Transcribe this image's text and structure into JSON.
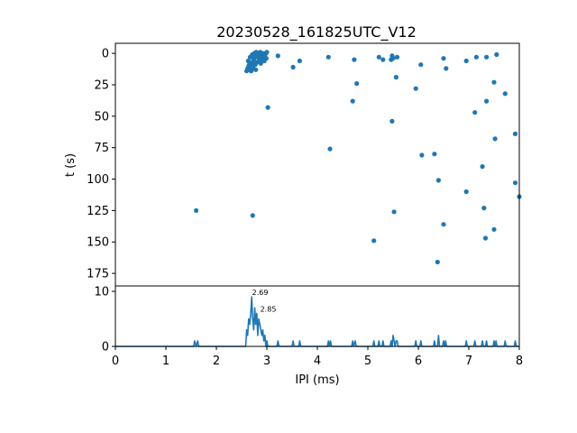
{
  "chart_data": [
    {
      "type": "scatter",
      "title": "20230528_161825UTC_V12",
      "xlabel": "",
      "ylabel": "t (s)",
      "xlim": [
        0,
        8
      ],
      "ylim": [
        185,
        -8
      ],
      "y_inverted": true,
      "yticks": [
        "0",
        "25",
        "50",
        "75",
        "100",
        "125",
        "150",
        "175"
      ],
      "grid": false,
      "color": "#1f77b4",
      "points": [
        [
          2.6,
          14
        ],
        [
          2.62,
          12
        ],
        [
          2.64,
          10
        ],
        [
          2.66,
          13
        ],
        [
          2.68,
          9
        ],
        [
          2.7,
          11
        ],
        [
          2.72,
          7
        ],
        [
          2.74,
          5
        ],
        [
          2.76,
          3
        ],
        [
          2.78,
          1
        ],
        [
          2.8,
          0
        ],
        [
          2.82,
          2
        ],
        [
          2.84,
          4
        ],
        [
          2.86,
          6
        ],
        [
          2.88,
          8
        ],
        [
          2.9,
          3
        ],
        [
          2.92,
          1
        ],
        [
          2.94,
          5
        ],
        [
          2.96,
          2
        ],
        [
          2.98,
          0
        ],
        [
          2.63,
          6
        ],
        [
          2.67,
          3
        ],
        [
          2.71,
          1
        ],
        [
          2.75,
          0
        ],
        [
          2.79,
          -1
        ],
        [
          2.83,
          0
        ],
        [
          2.87,
          -1
        ],
        [
          2.91,
          4
        ],
        [
          2.95,
          6
        ],
        [
          2.99,
          4
        ],
        [
          2.77,
          9
        ],
        [
          2.73,
          12
        ],
        [
          2.69,
          14
        ],
        [
          2.65,
          7
        ],
        [
          2.81,
          7
        ],
        [
          2.85,
          5
        ],
        [
          2.89,
          2
        ],
        [
          2.93,
          0
        ],
        [
          3.0,
          -1
        ],
        [
          2.78,
          13
        ],
        [
          3.22,
          2
        ],
        [
          3.52,
          11
        ],
        [
          3.65,
          6
        ],
        [
          4.22,
          3
        ],
        [
          4.73,
          5
        ],
        [
          4.78,
          24
        ],
        [
          4.7,
          38
        ],
        [
          5.22,
          3
        ],
        [
          5.3,
          5
        ],
        [
          5.46,
          5
        ],
        [
          5.48,
          2
        ],
        [
          5.5,
          4
        ],
        [
          5.58,
          3
        ],
        [
          5.56,
          19
        ],
        [
          5.95,
          28
        ],
        [
          6.05,
          9
        ],
        [
          6.5,
          4
        ],
        [
          6.55,
          12
        ],
        [
          6.95,
          6
        ],
        [
          7.15,
          3
        ],
        [
          7.35,
          3
        ],
        [
          7.55,
          1
        ],
        [
          7.5,
          23
        ],
        [
          7.72,
          32
        ],
        [
          7.35,
          38
        ],
        [
          7.12,
          47
        ],
        [
          3.02,
          43
        ],
        [
          5.48,
          54
        ],
        [
          7.52,
          68
        ],
        [
          7.92,
          64
        ],
        [
          4.25,
          76
        ],
        [
          6.07,
          81
        ],
        [
          6.32,
          80
        ],
        [
          7.27,
          90
        ],
        [
          6.4,
          101
        ],
        [
          6.95,
          110
        ],
        [
          7.92,
          103
        ],
        [
          8.0,
          114
        ],
        [
          1.6,
          125
        ],
        [
          2.72,
          129
        ],
        [
          5.52,
          126
        ],
        [
          7.3,
          123
        ],
        [
          6.5,
          136
        ],
        [
          7.5,
          140
        ],
        [
          5.12,
          149
        ],
        [
          7.33,
          147
        ],
        [
          6.38,
          166
        ]
      ]
    },
    {
      "type": "line",
      "xlabel": "IPI (ms)",
      "ylabel": "",
      "xlim": [
        0,
        8
      ],
      "ylim": [
        0,
        10
      ],
      "xticks": [
        "0",
        "1",
        "2",
        "3",
        "4",
        "5",
        "6",
        "7",
        "8"
      ],
      "yticks": [
        "0",
        "10"
      ],
      "color": "#1f77b4",
      "annotations": [
        "2.69",
        "2.85"
      ],
      "annotation_x": [
        2.69,
        2.85
      ],
      "annotation_y": [
        9.0,
        6.0
      ],
      "x": [
        0,
        1.55,
        1.57,
        1.6,
        1.63,
        1.65,
        2.58,
        2.6,
        2.62,
        2.64,
        2.66,
        2.68,
        2.7,
        2.72,
        2.74,
        2.76,
        2.78,
        2.8,
        2.82,
        2.84,
        2.86,
        2.88,
        2.9,
        2.92,
        2.94,
        2.96,
        2.98,
        3.0,
        3.02,
        3.2,
        3.22,
        3.24,
        3.5,
        3.52,
        3.54,
        3.63,
        3.65,
        3.67,
        4.2,
        4.22,
        4.24,
        4.26,
        4.28,
        4.68,
        4.7,
        4.72,
        4.75,
        4.77,
        4.79,
        5.1,
        5.12,
        5.14,
        5.2,
        5.22,
        5.24,
        5.28,
        5.3,
        5.32,
        5.44,
        5.46,
        5.48,
        5.5,
        5.52,
        5.54,
        5.56,
        5.58,
        5.6,
        5.93,
        5.95,
        5.97,
        6.03,
        6.05,
        6.07,
        6.3,
        6.32,
        6.34,
        6.38,
        6.4,
        6.42,
        6.48,
        6.5,
        6.52,
        6.54,
        6.56,
        6.93,
        6.95,
        6.97,
        7.1,
        7.12,
        7.14,
        7.25,
        7.27,
        7.29,
        7.33,
        7.35,
        7.37,
        7.48,
        7.5,
        7.52,
        7.54,
        7.56,
        7.7,
        7.72,
        7.74,
        7.9,
        7.92,
        7.94,
        8.0
      ],
      "y": [
        0,
        0,
        1,
        0,
        1,
        0,
        0,
        3,
        2,
        5,
        4,
        6,
        9,
        5,
        3,
        7,
        4,
        6,
        2,
        5,
        4,
        3,
        2,
        3,
        1,
        2,
        0,
        1,
        0,
        0,
        1,
        0,
        0,
        1,
        0,
        0,
        1,
        0,
        0,
        1,
        0,
        1,
        0,
        0,
        1,
        0,
        1,
        0,
        0,
        0,
        1,
        0,
        0,
        1,
        0,
        0,
        1,
        0,
        0,
        1,
        0,
        2,
        1,
        0,
        1,
        1,
        0,
        0,
        1,
        0,
        0,
        1,
        0,
        0,
        1,
        0,
        0,
        2,
        0,
        0,
        1,
        0,
        1,
        0,
        0,
        1,
        0,
        0,
        1,
        0,
        0,
        1,
        0,
        0,
        1,
        0,
        0,
        1,
        0,
        1,
        0,
        0,
        1,
        0,
        0,
        1,
        0,
        0
      ]
    }
  ]
}
